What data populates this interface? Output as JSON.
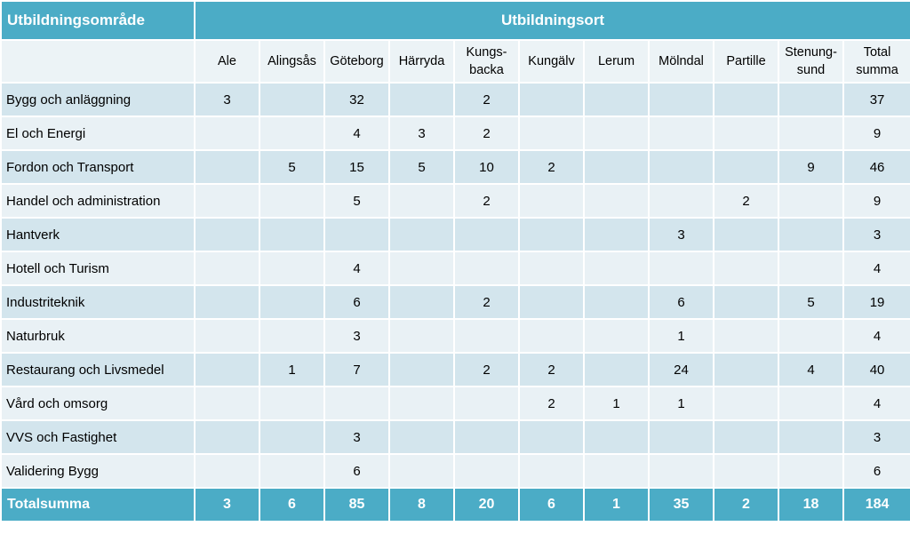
{
  "header": {
    "row_header": "Utbildningsområde",
    "column_group": "Utbildningsort"
  },
  "columns": [
    "Ale",
    "Alingsås",
    "Göteborg",
    "Härryda",
    "Kungs-backa",
    "Kungälv",
    "Lerum",
    "Mölndal",
    "Partille",
    "Stenung-sund",
    "Total summa"
  ],
  "rows": [
    {
      "label": "Bygg och anläggning",
      "values": [
        "3",
        "",
        "32",
        "",
        "2",
        "",
        "",
        "",
        "",
        "",
        "37"
      ]
    },
    {
      "label": "El och Energi",
      "values": [
        "",
        "",
        "4",
        "3",
        "2",
        "",
        "",
        "",
        "",
        "",
        "9"
      ]
    },
    {
      "label": "Fordon och Transport",
      "values": [
        "",
        "5",
        "15",
        "5",
        "10",
        "2",
        "",
        "",
        "",
        "9",
        "46"
      ]
    },
    {
      "label": "Handel och administration",
      "values": [
        "",
        "",
        "5",
        "",
        "2",
        "",
        "",
        "",
        "2",
        "",
        "9"
      ]
    },
    {
      "label": "Hantverk",
      "values": [
        "",
        "",
        "",
        "",
        "",
        "",
        "",
        "3",
        "",
        "",
        "3"
      ]
    },
    {
      "label": "Hotell och Turism",
      "values": [
        "",
        "",
        "4",
        "",
        "",
        "",
        "",
        "",
        "",
        "",
        "4"
      ]
    },
    {
      "label": "Industriteknik",
      "values": [
        "",
        "",
        "6",
        "",
        "2",
        "",
        "",
        "6",
        "",
        "5",
        "19"
      ]
    },
    {
      "label": "Naturbruk",
      "values": [
        "",
        "",
        "3",
        "",
        "",
        "",
        "",
        "1",
        "",
        "",
        "4"
      ]
    },
    {
      "label": "Restaurang och Livsmedel",
      "values": [
        "",
        "1",
        "7",
        "",
        "2",
        "2",
        "",
        "24",
        "",
        "4",
        "40"
      ]
    },
    {
      "label": "Vård och omsorg",
      "values": [
        "",
        "",
        "",
        "",
        "",
        "2",
        "1",
        "1",
        "",
        "",
        "4"
      ]
    },
    {
      "label": "VVS och Fastighet",
      "values": [
        "",
        "",
        "3",
        "",
        "",
        "",
        "",
        "",
        "",
        "",
        "3"
      ]
    },
    {
      "label": "Validering Bygg",
      "values": [
        "",
        "",
        "6",
        "",
        "",
        "",
        "",
        "",
        "",
        "",
        "6"
      ]
    }
  ],
  "total": {
    "label": "Totalsumma",
    "values": [
      "3",
      "6",
      "85",
      "8",
      "20",
      "6",
      "1",
      "35",
      "2",
      "18",
      "184"
    ]
  },
  "colors": {
    "header": "#4bacc6",
    "row_light": "#e9f1f5",
    "row_dark": "#d3e5ed",
    "subheader": "#ecf3f6"
  }
}
